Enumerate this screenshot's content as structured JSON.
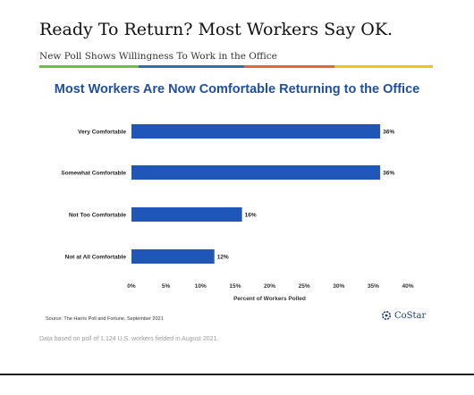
{
  "header": {
    "title": "Ready To Return? Most Workers Say OK.",
    "subtitle": "New Poll Shows Willingness To Work in the Office"
  },
  "accent_colors": [
    "#6fbe44",
    "#2f6db5",
    "#e26a2c",
    "#f2c318"
  ],
  "chart_data": {
    "type": "bar",
    "orientation": "horizontal",
    "title": "Most Workers Are Now Comfortable Returning to the Office",
    "categories": [
      "Very Comfortable",
      "Somewhat Comfortable",
      "Not Too Comfortable",
      "Not at All Comfortable"
    ],
    "values": [
      36,
      36,
      16,
      12
    ],
    "value_labels": [
      "36%",
      "36%",
      "16%",
      "12%"
    ],
    "xlabel": "Percent of Workers Polled",
    "ylabel": "",
    "xlim": [
      0,
      40
    ],
    "xticks": [
      "0%",
      "5%",
      "10%",
      "15%",
      "20%",
      "25%",
      "30%",
      "35%",
      "40%"
    ],
    "bar_color": "#1f57b8",
    "grid": false
  },
  "source": "Source: The Harris Poll and Fortune, September 2021",
  "logo": {
    "text": "CoStar",
    "icon": "costar-logo-icon"
  },
  "footnote": "Data based on poll of 1,124 U.S. workers fielded in August 2021."
}
